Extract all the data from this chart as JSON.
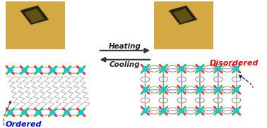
{
  "bg_color": "#ffffff",
  "photo_bg": "#d4a843",
  "photo_bg2": "#c9a040",
  "crystal_dark": "#2a2000",
  "crystal_mid": "#7a6010",
  "heating_label": "Heating",
  "cooling_label": "Cooling",
  "ordered_label": "Ordered",
  "disordered_label": "Disordered",
  "ordered_color": "#0000ee",
  "disordered_color": "#ee0000",
  "metal_color": "#00ccdd",
  "ligand_color_red": "#ff3333",
  "ligand_color_green": "#33aa33",
  "chain_color": "#aaaaaa",
  "conn_color": "#888888",
  "arrow_color": "#333333"
}
